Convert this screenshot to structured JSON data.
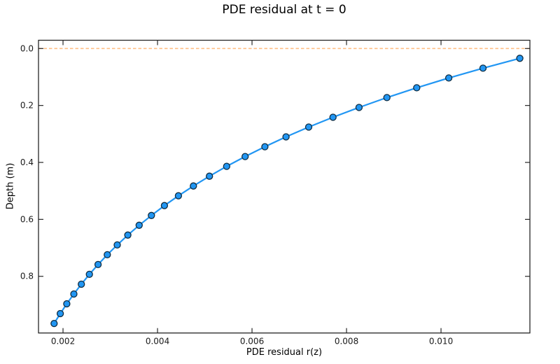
{
  "chart_data": {
    "type": "line",
    "title": "PDE residual at t = 0",
    "xlabel": "PDE residual r(z)",
    "ylabel": "Depth (m)",
    "grid": false,
    "legend": "none",
    "background": "#ffffff",
    "spine_color": "#262626",
    "tick_direction": "in",
    "y_inverted": true,
    "xlim": [
      0.001481,
      0.011881
    ],
    "ylim": [
      -0.029,
      0.999
    ],
    "xticks": {
      "values": [
        0.002,
        0.004,
        0.006,
        0.008,
        0.01
      ],
      "labels": [
        "0.002",
        "0.004",
        "0.006",
        "0.008",
        "0.010"
      ]
    },
    "yticks": {
      "values": [
        0.0,
        0.2,
        0.4,
        0.6,
        0.8
      ],
      "labels": [
        "0.0",
        "0.2",
        "0.4",
        "0.6",
        "0.8"
      ]
    },
    "reference_line": {
      "axis": "y",
      "value": 0.0,
      "color": "#ff7f0e",
      "opacity": 0.5,
      "style": "dashed",
      "width": 1.6
    },
    "series": [
      {
        "name": "residual-profile",
        "color": "#2196f3",
        "line_width": 2.2,
        "marker": "circle",
        "marker_radius": 4.5,
        "marker_edge_color": "#102c40",
        "marker_edge_width": 1.3,
        "x": [
          0.011667,
          0.010889,
          0.010164,
          0.009486,
          0.008854,
          0.008264,
          0.007713,
          0.007199,
          0.006719,
          0.006272,
          0.005854,
          0.005463,
          0.005099,
          0.00476,
          0.004442,
          0.004146,
          0.00387,
          0.003612,
          0.003371,
          0.003147,
          0.002937,
          0.002741,
          0.002558,
          0.002388,
          0.002229,
          0.00208,
          0.001942,
          0.001812
        ],
        "y": [
          0.0345,
          0.069,
          0.1034,
          0.1379,
          0.1724,
          0.2069,
          0.2414,
          0.2759,
          0.3103,
          0.3448,
          0.3793,
          0.4138,
          0.4483,
          0.4828,
          0.5172,
          0.5517,
          0.5862,
          0.6207,
          0.6552,
          0.6897,
          0.7241,
          0.7586,
          0.7931,
          0.8276,
          0.8621,
          0.8966,
          0.931,
          0.9655
        ]
      }
    ]
  }
}
